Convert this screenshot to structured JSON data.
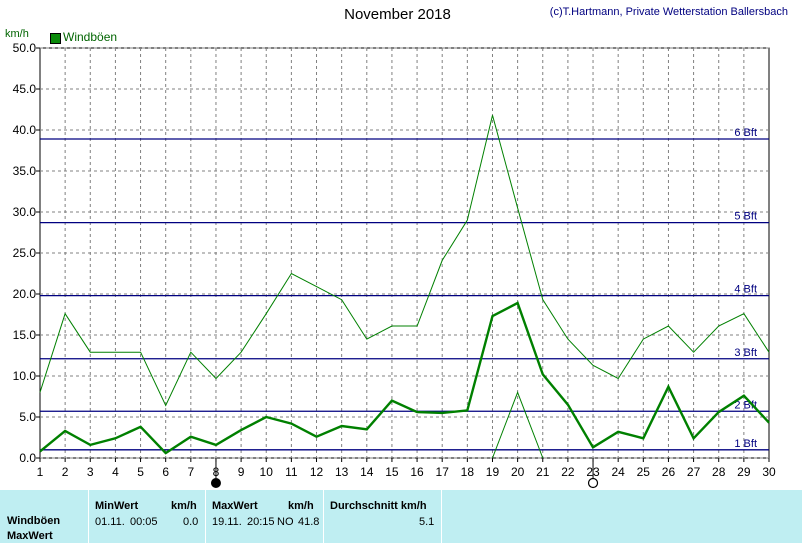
{
  "header": {
    "title": "November 2018",
    "copyright": "(c)T.Hartmann, Private Wetterstation Ballersbach",
    "unit": "km/h",
    "legend_label": "Windböen"
  },
  "chart_data": {
    "type": "line",
    "xlabel": "",
    "ylabel": "km/h",
    "xlim": [
      1,
      30
    ],
    "ylim": [
      0,
      50
    ],
    "x": [
      1,
      2,
      3,
      4,
      5,
      6,
      7,
      8,
      9,
      10,
      11,
      12,
      13,
      14,
      15,
      16,
      17,
      18,
      19,
      20,
      21,
      22,
      23,
      24,
      25,
      26,
      27,
      28,
      29,
      30
    ],
    "y_ticks": [
      "0.0",
      "5.0",
      "10.0",
      "15.0",
      "20.0",
      "25.0",
      "30.0",
      "35.0",
      "40.0",
      "45.0",
      "50.0"
    ],
    "x_ticks": [
      "1",
      "2",
      "3",
      "4",
      "5",
      "6",
      "7",
      "8",
      "9",
      "10",
      "11",
      "12",
      "13",
      "14",
      "15",
      "16",
      "17",
      "18",
      "19",
      "20",
      "21",
      "22",
      "23",
      "24",
      "25",
      "26",
      "27",
      "28",
      "29",
      "30"
    ],
    "grid": true,
    "legend_position": "top-left",
    "series": [
      {
        "name": "Windböen",
        "role": "daily",
        "color": "#008000",
        "values": [
          0.8,
          3.3,
          1.6,
          2.4,
          3.8,
          0.6,
          2.6,
          1.6,
          3.4,
          5.0,
          4.2,
          2.6,
          3.9,
          3.5,
          7.0,
          5.6,
          5.5,
          5.8,
          17.3,
          18.9,
          10.2,
          6.5,
          1.3,
          3.2,
          2.4,
          8.7,
          2.4,
          5.6,
          7.6,
          4.3
        ]
      },
      {
        "values": [
          8.0,
          17.6,
          12.9,
          12.9,
          12.9,
          6.4,
          12.9,
          9.7,
          12.9,
          17.6,
          22.5,
          20.9,
          19.3,
          14.5,
          16.1,
          16.1,
          24.1,
          29.0,
          41.8,
          30.5,
          19.3,
          14.5,
          11.3,
          9.7,
          14.5,
          16.1,
          12.9,
          16.1,
          17.6,
          12.9
        ]
      },
      {
        "values": [
          null,
          null,
          null,
          null,
          null,
          null,
          null,
          null,
          null,
          null,
          null,
          null,
          null,
          null,
          null,
          null,
          null,
          null,
          0.0,
          8.0,
          0.0,
          null,
          null,
          null,
          null,
          null,
          null,
          null,
          null,
          null
        ]
      }
    ],
    "reference_lines": [
      {
        "label": "1 Bft",
        "value": 1.0
      },
      {
        "label": "2 Bft",
        "value": 5.7
      },
      {
        "label": "3 Bft",
        "value": 12.1
      },
      {
        "label": "4 Bft",
        "value": 19.8
      },
      {
        "label": "5 Bft",
        "value": 28.7
      },
      {
        "label": "6 Bft",
        "value": 38.9
      }
    ],
    "moon_markers": [
      {
        "day": 8,
        "phase": "new-moon"
      },
      {
        "day": 23,
        "phase": "full-moon"
      }
    ],
    "colors": {
      "daily": "#008000",
      "band": "#008000",
      "bft": "#000080",
      "grid": "#808080"
    }
  },
  "table": {
    "row1_label": "Windböen",
    "row2_label": "MaxWert",
    "min_header": "MinWert",
    "min_unit": "km/h",
    "min_date": "01.11.",
    "min_time": "00:05",
    "min_value": "0.0",
    "max_header": "MaxWert",
    "max_unit": "km/h",
    "max_date": "19.11.",
    "max_time": "20:15",
    "max_dir": "NO",
    "max_value": "41.8",
    "avg_header": "Durchschnitt km/h",
    "avg_value": "5.1"
  }
}
